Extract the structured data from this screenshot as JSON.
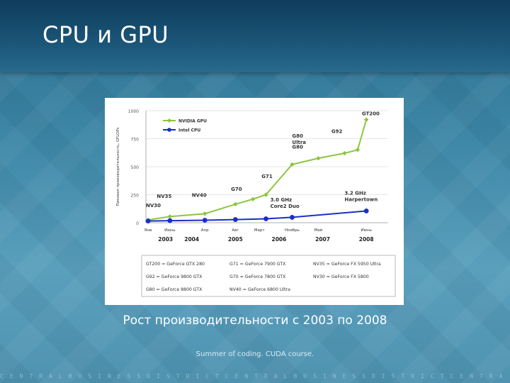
{
  "slide": {
    "title": "CPU и GPU",
    "caption": "Рост производительности с 2003 по 2008",
    "footer": "Summer of coding. CUDA course.",
    "strip": "CENTRALBUSINESSDISTRICTCENTRALBUSINESSDISTRICTCENTRA"
  },
  "chart_data": {
    "type": "line",
    "ylabel": "Пиковая производительность, GFLOPs",
    "ylim": [
      0,
      1000
    ],
    "yticks": [
      0,
      250,
      500,
      750,
      1000
    ],
    "x_month_labels": [
      "Янв",
      "Июнь",
      "Апр",
      "Авг",
      "Март",
      "Ноябрь",
      "Май",
      "Июнь"
    ],
    "x_year_labels": [
      "2003",
      "2004",
      "2005",
      "2006",
      "2007",
      "2008"
    ],
    "legend": [
      "NVIDIA GPU",
      "Intel CPU"
    ],
    "legend_position": "top-left",
    "colors": {
      "gpu": "#8cc63f",
      "cpu": "#1a2fc8"
    },
    "series": [
      {
        "name": "NVIDIA GPU",
        "points": [
          {
            "x": 2003.0,
            "y": 25
          },
          {
            "x": 2003.5,
            "y": 55
          },
          {
            "x": 2004.3,
            "y": 80
          },
          {
            "x": 2005.0,
            "y": 165
          },
          {
            "x": 2005.4,
            "y": 210
          },
          {
            "x": 2005.7,
            "y": 250
          },
          {
            "x": 2006.3,
            "y": 520
          },
          {
            "x": 2006.9,
            "y": 575
          },
          {
            "x": 2007.5,
            "y": 620
          },
          {
            "x": 2007.8,
            "y": 650
          },
          {
            "x": 2008.0,
            "y": 920
          }
        ]
      },
      {
        "name": "Intel CPU",
        "points": [
          {
            "x": 2003.0,
            "y": 15
          },
          {
            "x": 2003.5,
            "y": 18
          },
          {
            "x": 2004.3,
            "y": 22
          },
          {
            "x": 2005.0,
            "y": 28
          },
          {
            "x": 2005.7,
            "y": 35
          },
          {
            "x": 2006.3,
            "y": 48
          },
          {
            "x": 2008.0,
            "y": 105
          }
        ]
      }
    ],
    "annotations": [
      "GT200",
      "G92",
      "G80 Ultra",
      "G80",
      "G71",
      "G70",
      "NV40",
      "NV35",
      "NV30",
      "3.0 GHz Core2 Duo",
      "3.2 GHz Harpertown"
    ],
    "table": [
      [
        "GT200 = GeForce GTX 280",
        "G71 = GeForce 7900 GTX",
        "NV35 = GeForce FX 5950 Ultra"
      ],
      [
        "G92 = GeForce 9800 GTX",
        "G70 = GeForce 7800 GTX",
        "NV30 = GeForce FX 5800"
      ],
      [
        "G80 = GeForce 8800 GTX",
        "NV40 = GeForce 6800 Ultra",
        ""
      ]
    ]
  }
}
